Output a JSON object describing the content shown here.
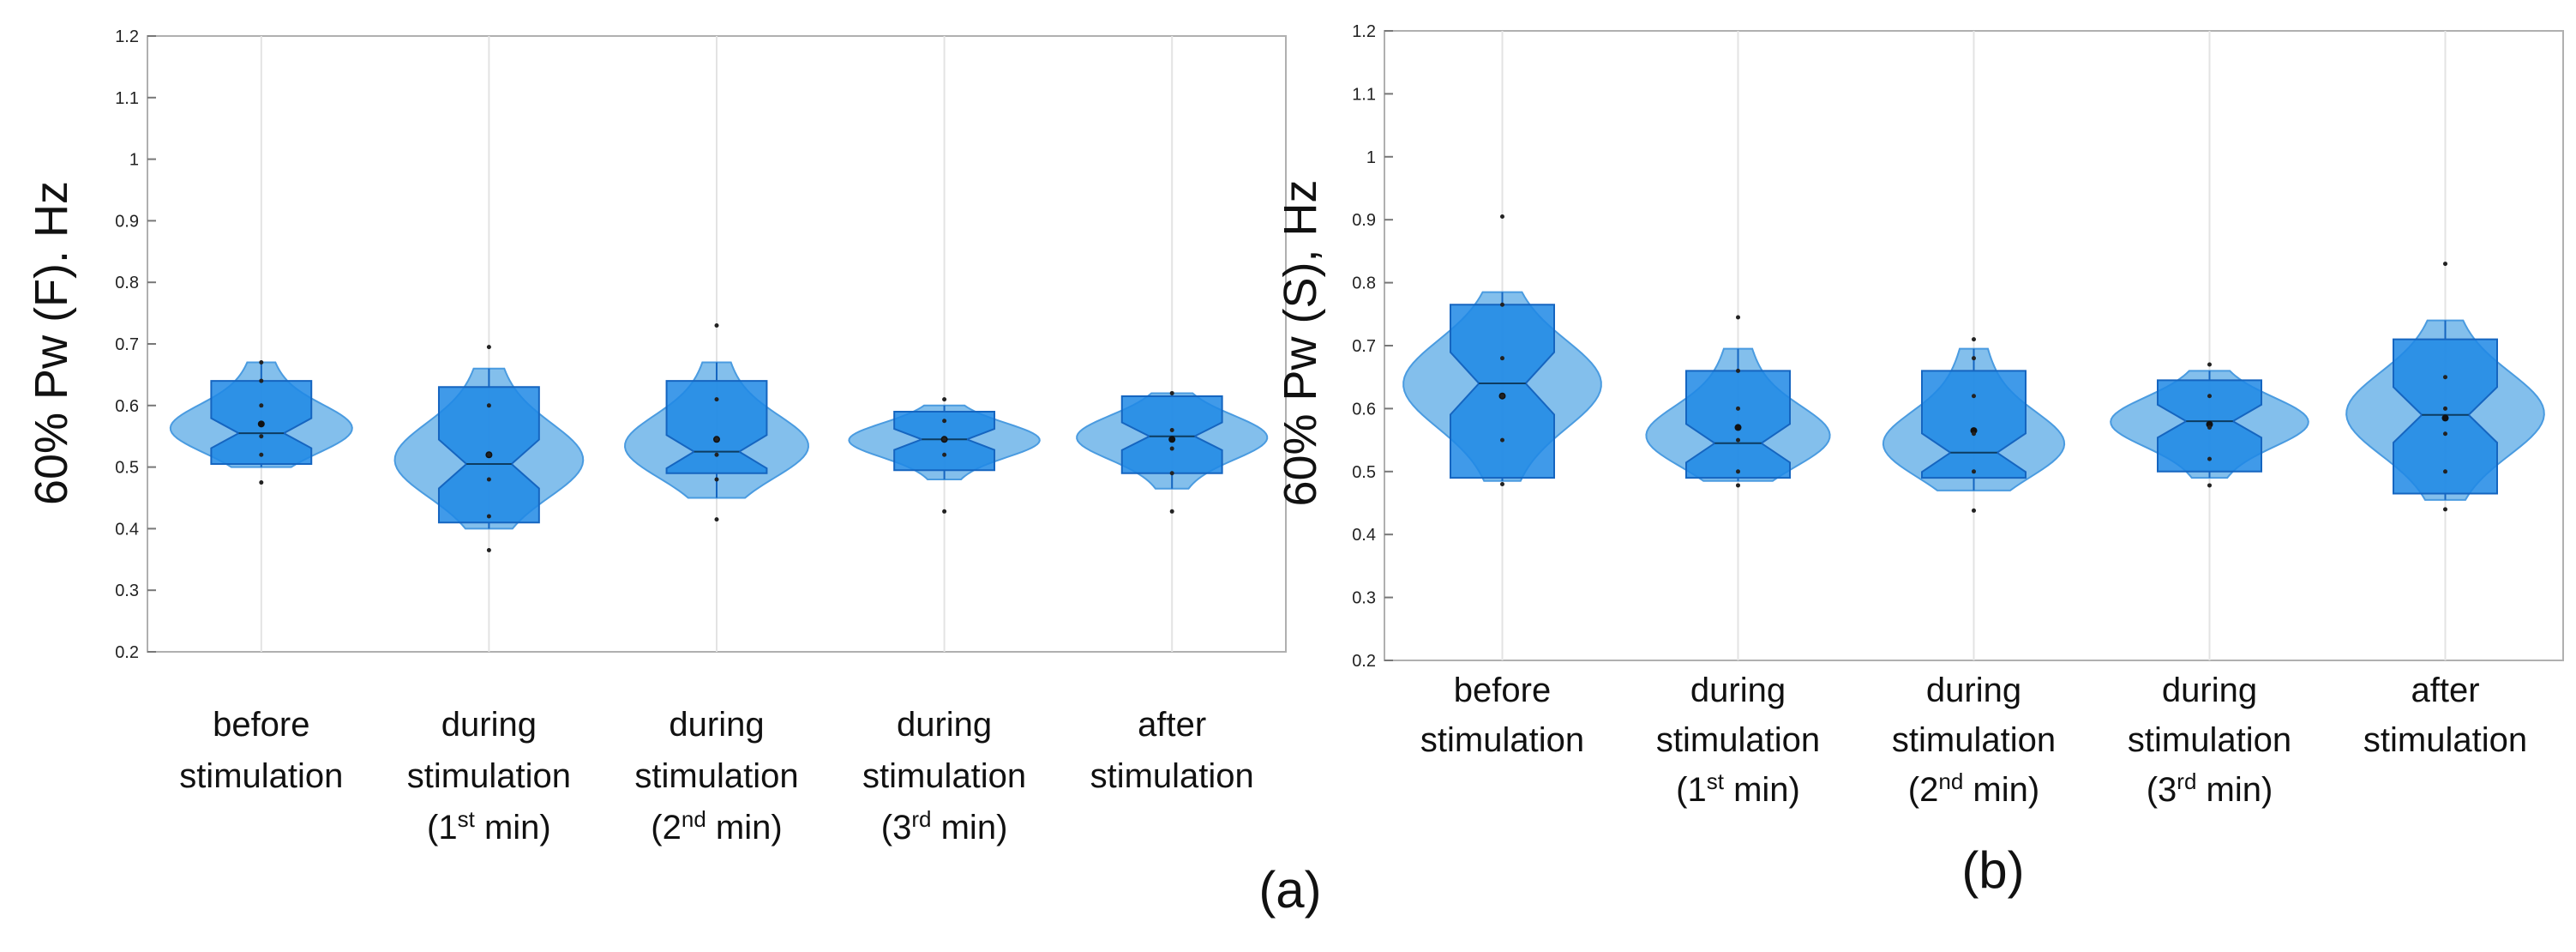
{
  "chart_data": [
    {
      "type": "violin",
      "panel_label": "(a)",
      "ylabel": "60% Pw (F). Hz",
      "ylim": [
        0.2,
        1.2
      ],
      "yticks": [
        "0.2",
        "0.3",
        "0.4",
        "0.5",
        "0.6",
        "0.7",
        "0.8",
        "0.9",
        "1",
        "1.1",
        "1.2"
      ],
      "grid": true,
      "fill_color": "#5aa9e6",
      "box_color": "#1e88e5",
      "categories": [
        {
          "label_lines": [
            "before",
            "stimulation"
          ],
          "sup": null,
          "min": 0.5,
          "max": 0.67,
          "median": 0.555,
          "q1": 0.505,
          "q3": 0.64,
          "mean": 0.57,
          "points": [
            0.475,
            0.52,
            0.55,
            0.6,
            0.64,
            0.67
          ]
        },
        {
          "label_lines": [
            "during",
            "stimulation"
          ],
          "sup": {
            "pre": "(1",
            "sup": "st",
            "post": " min)"
          },
          "min": 0.4,
          "max": 0.66,
          "median": 0.505,
          "q1": 0.41,
          "q3": 0.63,
          "mean": 0.52,
          "points": [
            0.365,
            0.42,
            0.48,
            0.52,
            0.6,
            0.695
          ]
        },
        {
          "label_lines": [
            "during",
            "stimulation"
          ],
          "sup": {
            "pre": "(2",
            "sup": "nd",
            "post": " min)"
          },
          "min": 0.45,
          "max": 0.67,
          "median": 0.525,
          "q1": 0.49,
          "q3": 0.64,
          "mean": 0.545,
          "points": [
            0.415,
            0.48,
            0.52,
            0.545,
            0.61,
            0.73
          ]
        },
        {
          "label_lines": [
            "during",
            "stimulation"
          ],
          "sup": {
            "pre": "(3",
            "sup": "rd",
            "post": " min)"
          },
          "min": 0.48,
          "max": 0.6,
          "median": 0.545,
          "q1": 0.495,
          "q3": 0.59,
          "mean": 0.545,
          "points": [
            0.428,
            0.52,
            0.545,
            0.575,
            0.61
          ]
        },
        {
          "label_lines": [
            "after",
            "stimulation"
          ],
          "sup": null,
          "min": 0.465,
          "max": 0.62,
          "median": 0.55,
          "q1": 0.49,
          "q3": 0.615,
          "mean": 0.545,
          "points": [
            0.428,
            0.49,
            0.53,
            0.56,
            0.62
          ]
        }
      ]
    },
    {
      "type": "violin",
      "panel_label": "(b)",
      "ylabel": "60% Pw (S), Hz",
      "ylim": [
        0.2,
        1.2
      ],
      "yticks": [
        "0.2",
        "0.3",
        "0.4",
        "0.5",
        "0.6",
        "0.7",
        "0.8",
        "0.9",
        "1",
        "1.1",
        "1.2"
      ],
      "grid": true,
      "fill_color": "#5aa9e6",
      "box_color": "#1e88e5",
      "categories": [
        {
          "label_lines": [
            "before",
            "stimulation"
          ],
          "sup": null,
          "min": 0.485,
          "max": 0.785,
          "median": 0.64,
          "q1": 0.49,
          "q3": 0.765,
          "mean": 0.62,
          "points": [
            0.48,
            0.55,
            0.62,
            0.68,
            0.765,
            0.905
          ]
        },
        {
          "label_lines": [
            "during",
            "stimulation"
          ],
          "sup": {
            "pre": "(1",
            "sup": "st",
            "post": " min)"
          },
          "min": 0.485,
          "max": 0.695,
          "median": 0.545,
          "q1": 0.49,
          "q3": 0.66,
          "mean": 0.57,
          "points": [
            0.478,
            0.5,
            0.55,
            0.6,
            0.66,
            0.745
          ]
        },
        {
          "label_lines": [
            "during",
            "stimulation"
          ],
          "sup": {
            "pre": "(2",
            "sup": "nd",
            "post": " min)"
          },
          "min": 0.47,
          "max": 0.695,
          "median": 0.53,
          "q1": 0.49,
          "q3": 0.66,
          "mean": 0.565,
          "points": [
            0.438,
            0.5,
            0.56,
            0.62,
            0.68,
            0.71
          ]
        },
        {
          "label_lines": [
            "during",
            "stimulation"
          ],
          "sup": {
            "pre": "(3",
            "sup": "rd",
            "post": " min)"
          },
          "min": 0.49,
          "max": 0.66,
          "median": 0.58,
          "q1": 0.5,
          "q3": 0.645,
          "mean": 0.575,
          "points": [
            0.478,
            0.52,
            0.57,
            0.62,
            0.67
          ]
        },
        {
          "label_lines": [
            "after",
            "stimulation"
          ],
          "sup": null,
          "min": 0.455,
          "max": 0.74,
          "median": 0.59,
          "q1": 0.465,
          "q3": 0.71,
          "mean": 0.585,
          "points": [
            0.44,
            0.5,
            0.56,
            0.6,
            0.65,
            0.83
          ]
        }
      ]
    }
  ]
}
